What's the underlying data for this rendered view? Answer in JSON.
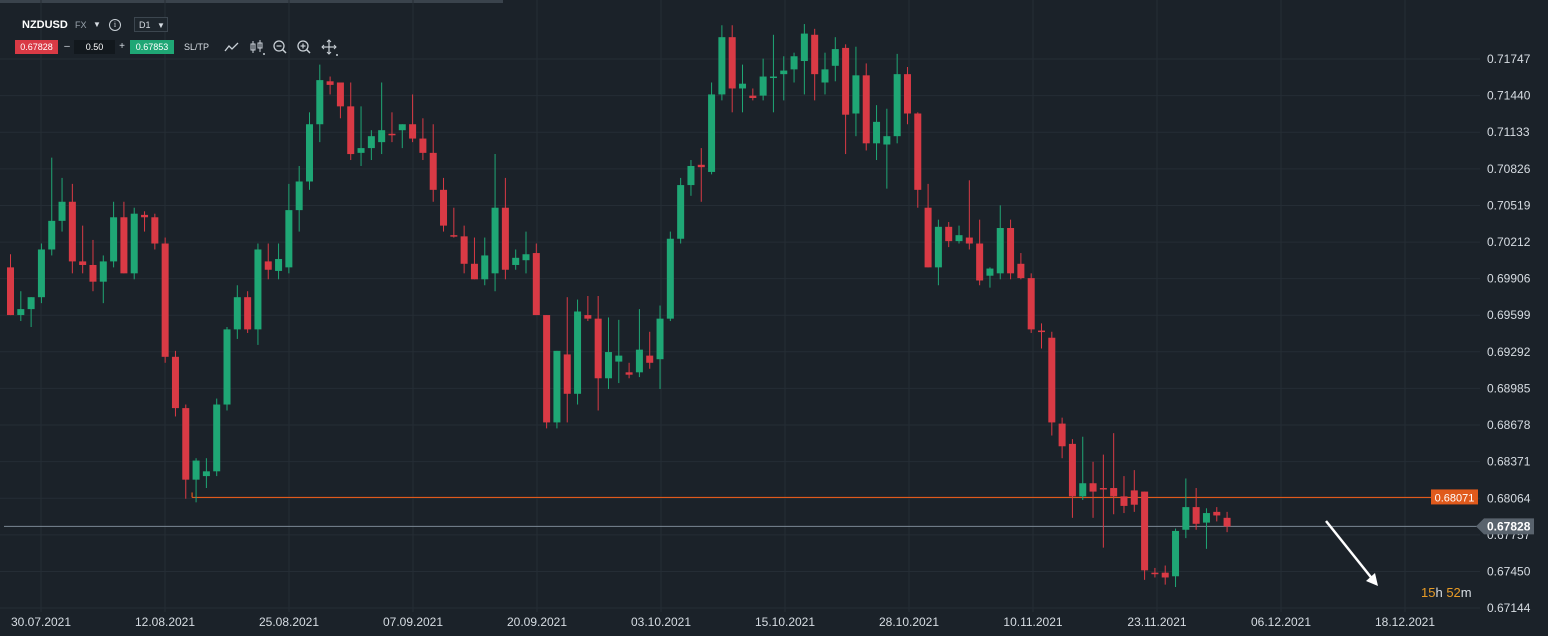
{
  "toolbar": {
    "symbol": "NZDUSD",
    "market": "FX",
    "info_icon": "i",
    "timeframe": "D1",
    "bid": "0.67828",
    "ask": "0.67853",
    "lot": "0.50",
    "minus": "–",
    "plus": "+",
    "sltp": "SL/TP",
    "icons": [
      "line-chart-icon",
      "candlestick-icon",
      "zoom-out-icon",
      "zoom-in-icon",
      "crosshair-move-icon"
    ]
  },
  "countdown": {
    "hours": "15",
    "h": "h",
    "minutes": "52",
    "m": "m"
  },
  "colors": {
    "up": "#1fa775",
    "down": "#d93a45",
    "level": "#e05a1c",
    "price_line": "#7b8894",
    "arrow": "#ffffff"
  },
  "chart_data": {
    "type": "candlestick",
    "symbol": "NZDUSD",
    "timeframe": "D1",
    "y_ticks": [
      0.71747,
      0.7144,
      0.71133,
      0.70826,
      0.70519,
      0.70212,
      0.69906,
      0.69599,
      0.69292,
      0.68985,
      0.68678,
      0.68371,
      0.68064,
      0.67757,
      0.6745,
      0.67144
    ],
    "y_tick_labels": [
      "0.71747",
      "0.71440",
      "0.71133",
      "0.70826",
      "0.70519",
      "0.70212",
      "0.69906",
      "0.69599",
      "0.69292",
      "0.68985",
      "0.68678",
      "0.68371",
      "0.68064",
      "0.67757",
      "0.67450",
      "0.67144"
    ],
    "x_tick_labels": [
      "30.07.2021",
      "12.08.2021",
      "25.08.2021",
      "07.09.2021",
      "20.09.2021",
      "03.10.2021",
      "15.10.2021",
      "28.10.2021",
      "10.11.2021",
      "23.11.2021",
      "06.12.2021",
      "18.12.2021"
    ],
    "ylim": [
      0.6707,
      0.7217
    ],
    "horizontal_level": {
      "value": 0.68071,
      "label": "0.68071"
    },
    "current_price": {
      "value": 0.67828,
      "label": "0.67828"
    },
    "candles": [
      {
        "o": 0.7,
        "h": 0.7011,
        "l": 0.696,
        "c": 0.696
      },
      {
        "o": 0.696,
        "h": 0.698,
        "l": 0.6955,
        "c": 0.6965
      },
      {
        "o": 0.6965,
        "h": 0.6975,
        "l": 0.695,
        "c": 0.6975
      },
      {
        "o": 0.6975,
        "h": 0.702,
        "l": 0.697,
        "c": 0.7015
      },
      {
        "o": 0.7015,
        "h": 0.7092,
        "l": 0.701,
        "c": 0.7039
      },
      {
        "o": 0.7039,
        "h": 0.7075,
        "l": 0.703,
        "c": 0.7055
      },
      {
        "o": 0.7055,
        "h": 0.707,
        "l": 0.6995,
        "c": 0.7005
      },
      {
        "o": 0.7005,
        "h": 0.7035,
        "l": 0.6995,
        "c": 0.7002
      },
      {
        "o": 0.7002,
        "h": 0.7023,
        "l": 0.698,
        "c": 0.6988
      },
      {
        "o": 0.6988,
        "h": 0.701,
        "l": 0.697,
        "c": 0.7005
      },
      {
        "o": 0.7005,
        "h": 0.7055,
        "l": 0.7,
        "c": 0.7042
      },
      {
        "o": 0.7042,
        "h": 0.7055,
        "l": 0.6995,
        "c": 0.6995
      },
      {
        "o": 0.6995,
        "h": 0.705,
        "l": 0.699,
        "c": 0.7045
      },
      {
        "o": 0.7044,
        "h": 0.7047,
        "l": 0.703,
        "c": 0.7042
      },
      {
        "o": 0.7042,
        "h": 0.7045,
        "l": 0.7015,
        "c": 0.702
      },
      {
        "o": 0.702,
        "h": 0.7025,
        "l": 0.692,
        "c": 0.6925
      },
      {
        "o": 0.6925,
        "h": 0.693,
        "l": 0.6875,
        "c": 0.6882
      },
      {
        "o": 0.6882,
        "h": 0.6885,
        "l": 0.6806,
        "c": 0.6822
      },
      {
        "o": 0.6822,
        "h": 0.684,
        "l": 0.6803,
        "c": 0.6838
      },
      {
        "o": 0.6825,
        "h": 0.684,
        "l": 0.6815,
        "c": 0.6829
      },
      {
        "o": 0.6829,
        "h": 0.689,
        "l": 0.6825,
        "c": 0.6885
      },
      {
        "o": 0.6885,
        "h": 0.695,
        "l": 0.688,
        "c": 0.6948
      },
      {
        "o": 0.6948,
        "h": 0.6985,
        "l": 0.694,
        "c": 0.6975
      },
      {
        "o": 0.6975,
        "h": 0.698,
        "l": 0.6945,
        "c": 0.6948
      },
      {
        "o": 0.6948,
        "h": 0.702,
        "l": 0.6935,
        "c": 0.7015
      },
      {
        "o": 0.7005,
        "h": 0.702,
        "l": 0.699,
        "c": 0.6998
      },
      {
        "o": 0.6997,
        "h": 0.702,
        "l": 0.699,
        "c": 0.7007
      },
      {
        "o": 0.7,
        "h": 0.707,
        "l": 0.6995,
        "c": 0.7048
      },
      {
        "o": 0.7048,
        "h": 0.7085,
        "l": 0.703,
        "c": 0.7072
      },
      {
        "o": 0.7072,
        "h": 0.713,
        "l": 0.7065,
        "c": 0.712
      },
      {
        "o": 0.712,
        "h": 0.717,
        "l": 0.7105,
        "c": 0.7157
      },
      {
        "o": 0.7156,
        "h": 0.716,
        "l": 0.7145,
        "c": 0.7153
      },
      {
        "o": 0.7155,
        "h": 0.7155,
        "l": 0.7125,
        "c": 0.7135
      },
      {
        "o": 0.7135,
        "h": 0.7155,
        "l": 0.709,
        "c": 0.7095
      },
      {
        "o": 0.7096,
        "h": 0.7135,
        "l": 0.7085,
        "c": 0.71
      },
      {
        "o": 0.71,
        "h": 0.7115,
        "l": 0.709,
        "c": 0.711
      },
      {
        "o": 0.7105,
        "h": 0.7155,
        "l": 0.7095,
        "c": 0.7115
      },
      {
        "o": 0.7112,
        "h": 0.713,
        "l": 0.7105,
        "c": 0.7111
      },
      {
        "o": 0.7115,
        "h": 0.712,
        "l": 0.71,
        "c": 0.712
      },
      {
        "o": 0.712,
        "h": 0.7145,
        "l": 0.7105,
        "c": 0.7108
      },
      {
        "o": 0.7108,
        "h": 0.7125,
        "l": 0.709,
        "c": 0.7096
      },
      {
        "o": 0.7096,
        "h": 0.712,
        "l": 0.7055,
        "c": 0.7065
      },
      {
        "o": 0.7065,
        "h": 0.7075,
        "l": 0.703,
        "c": 0.7035
      },
      {
        "o": 0.7027,
        "h": 0.705,
        "l": 0.7025,
        "c": 0.7026
      },
      {
        "o": 0.7026,
        "h": 0.7035,
        "l": 0.6995,
        "c": 0.7003
      },
      {
        "o": 0.7003,
        "h": 0.7025,
        "l": 0.699,
        "c": 0.699
      },
      {
        "o": 0.699,
        "h": 0.7025,
        "l": 0.6985,
        "c": 0.701
      },
      {
        "o": 0.6995,
        "h": 0.7095,
        "l": 0.698,
        "c": 0.705
      },
      {
        "o": 0.705,
        "h": 0.7075,
        "l": 0.699,
        "c": 0.6998
      },
      {
        "o": 0.7002,
        "h": 0.7015,
        "l": 0.6998,
        "c": 0.7008
      },
      {
        "o": 0.7006,
        "h": 0.703,
        "l": 0.6995,
        "c": 0.7011
      },
      {
        "o": 0.7012,
        "h": 0.702,
        "l": 0.696,
        "c": 0.696
      },
      {
        "o": 0.696,
        "h": 0.696,
        "l": 0.6865,
        "c": 0.687
      },
      {
        "o": 0.687,
        "h": 0.693,
        "l": 0.6865,
        "c": 0.693
      },
      {
        "o": 0.6927,
        "h": 0.6975,
        "l": 0.687,
        "c": 0.6894
      },
      {
        "o": 0.6894,
        "h": 0.6973,
        "l": 0.6885,
        "c": 0.6963
      },
      {
        "o": 0.696,
        "h": 0.6976,
        "l": 0.6955,
        "c": 0.6957
      },
      {
        "o": 0.6957,
        "h": 0.6976,
        "l": 0.688,
        "c": 0.6907
      },
      {
        "o": 0.6907,
        "h": 0.6958,
        "l": 0.6898,
        "c": 0.6929
      },
      {
        "o": 0.6921,
        "h": 0.6956,
        "l": 0.6903,
        "c": 0.6926
      },
      {
        "o": 0.6912,
        "h": 0.692,
        "l": 0.6907,
        "c": 0.691
      },
      {
        "o": 0.6912,
        "h": 0.6965,
        "l": 0.6908,
        "c": 0.6931
      },
      {
        "o": 0.6926,
        "h": 0.6946,
        "l": 0.6915,
        "c": 0.692
      },
      {
        "o": 0.6923,
        "h": 0.6968,
        "l": 0.6898,
        "c": 0.6957
      },
      {
        "o": 0.6957,
        "h": 0.703,
        "l": 0.6955,
        "c": 0.7024
      },
      {
        "o": 0.7024,
        "h": 0.7075,
        "l": 0.702,
        "c": 0.7069
      },
      {
        "o": 0.7069,
        "h": 0.709,
        "l": 0.706,
        "c": 0.7085
      },
      {
        "o": 0.7086,
        "h": 0.71,
        "l": 0.7055,
        "c": 0.7084
      },
      {
        "o": 0.708,
        "h": 0.7155,
        "l": 0.7078,
        "c": 0.7145
      },
      {
        "o": 0.7145,
        "h": 0.7203,
        "l": 0.714,
        "c": 0.7193
      },
      {
        "o": 0.7193,
        "h": 0.7203,
        "l": 0.713,
        "c": 0.715
      },
      {
        "o": 0.715,
        "h": 0.717,
        "l": 0.713,
        "c": 0.7154
      },
      {
        "o": 0.7144,
        "h": 0.715,
        "l": 0.714,
        "c": 0.7142
      },
      {
        "o": 0.7144,
        "h": 0.7175,
        "l": 0.714,
        "c": 0.716
      },
      {
        "o": 0.716,
        "h": 0.7195,
        "l": 0.713,
        "c": 0.716
      },
      {
        "o": 0.7162,
        "h": 0.7177,
        "l": 0.714,
        "c": 0.7165
      },
      {
        "o": 0.7166,
        "h": 0.718,
        "l": 0.7155,
        "c": 0.7177
      },
      {
        "o": 0.7173,
        "h": 0.7204,
        "l": 0.7145,
        "c": 0.7196
      },
      {
        "o": 0.7195,
        "h": 0.72,
        "l": 0.714,
        "c": 0.7162
      },
      {
        "o": 0.7155,
        "h": 0.718,
        "l": 0.7145,
        "c": 0.7166
      },
      {
        "o": 0.7169,
        "h": 0.7193,
        "l": 0.7156,
        "c": 0.7183
      },
      {
        "o": 0.7184,
        "h": 0.7187,
        "l": 0.7095,
        "c": 0.7128
      },
      {
        "o": 0.7129,
        "h": 0.7185,
        "l": 0.711,
        "c": 0.7161
      },
      {
        "o": 0.7161,
        "h": 0.7171,
        "l": 0.7098,
        "c": 0.7104
      },
      {
        "o": 0.7104,
        "h": 0.7136,
        "l": 0.709,
        "c": 0.7122
      },
      {
        "o": 0.7103,
        "h": 0.7133,
        "l": 0.7066,
        "c": 0.711
      },
      {
        "o": 0.711,
        "h": 0.7179,
        "l": 0.7104,
        "c": 0.7162
      },
      {
        "o": 0.7162,
        "h": 0.7168,
        "l": 0.712,
        "c": 0.7129
      },
      {
        "o": 0.7129,
        "h": 0.713,
        "l": 0.705,
        "c": 0.7065
      },
      {
        "o": 0.705,
        "h": 0.707,
        "l": 0.7,
        "c": 0.7
      },
      {
        "o": 0.7,
        "h": 0.704,
        "l": 0.6985,
        "c": 0.7034
      },
      {
        "o": 0.7034,
        "h": 0.7038,
        "l": 0.7017,
        "c": 0.7022
      },
      {
        "o": 0.7022,
        "h": 0.7035,
        "l": 0.702,
        "c": 0.7027
      },
      {
        "o": 0.7025,
        "h": 0.7073,
        "l": 0.7015,
        "c": 0.702
      },
      {
        "o": 0.702,
        "h": 0.704,
        "l": 0.6985,
        "c": 0.6989
      },
      {
        "o": 0.6993,
        "h": 0.7,
        "l": 0.6983,
        "c": 0.6999
      },
      {
        "o": 0.6995,
        "h": 0.7052,
        "l": 0.699,
        "c": 0.7033
      },
      {
        "o": 0.7033,
        "h": 0.704,
        "l": 0.699,
        "c": 0.6995
      },
      {
        "o": 0.7003,
        "h": 0.7012,
        "l": 0.699,
        "c": 0.6991
      },
      {
        "o": 0.6991,
        "h": 0.6995,
        "l": 0.6945,
        "c": 0.6948
      },
      {
        "o": 0.6947,
        "h": 0.6953,
        "l": 0.6932,
        "c": 0.6946
      },
      {
        "o": 0.6941,
        "h": 0.6946,
        "l": 0.6859,
        "c": 0.687
      },
      {
        "o": 0.6869,
        "h": 0.6874,
        "l": 0.684,
        "c": 0.685
      },
      {
        "o": 0.6852,
        "h": 0.6856,
        "l": 0.679,
        "c": 0.6808
      },
      {
        "o": 0.6808,
        "h": 0.6858,
        "l": 0.6805,
        "c": 0.6819
      },
      {
        "o": 0.6819,
        "h": 0.6837,
        "l": 0.679,
        "c": 0.6812
      },
      {
        "o": 0.6815,
        "h": 0.6843,
        "l": 0.6765,
        "c": 0.6814
      },
      {
        "o": 0.6815,
        "h": 0.6861,
        "l": 0.6793,
        "c": 0.6808
      },
      {
        "o": 0.6808,
        "h": 0.6825,
        "l": 0.6794,
        "c": 0.68
      },
      {
        "o": 0.6813,
        "h": 0.683,
        "l": 0.6795,
        "c": 0.6801
      },
      {
        "o": 0.6812,
        "h": 0.6812,
        "l": 0.6738,
        "c": 0.6746
      },
      {
        "o": 0.6744,
        "h": 0.6748,
        "l": 0.674,
        "c": 0.6743
      },
      {
        "o": 0.6744,
        "h": 0.675,
        "l": 0.6734,
        "c": 0.674
      },
      {
        "o": 0.6741,
        "h": 0.6781,
        "l": 0.6732,
        "c": 0.6779
      },
      {
        "o": 0.678,
        "h": 0.6823,
        "l": 0.6773,
        "c": 0.6799
      },
      {
        "o": 0.6799,
        "h": 0.6815,
        "l": 0.678,
        "c": 0.6785
      },
      {
        "o": 0.6786,
        "h": 0.6798,
        "l": 0.6764,
        "c": 0.6794
      },
      {
        "o": 0.6795,
        "h": 0.6799,
        "l": 0.6787,
        "c": 0.6792
      },
      {
        "o": 0.679,
        "h": 0.6795,
        "l": 0.6778,
        "c": 0.67828
      }
    ]
  }
}
